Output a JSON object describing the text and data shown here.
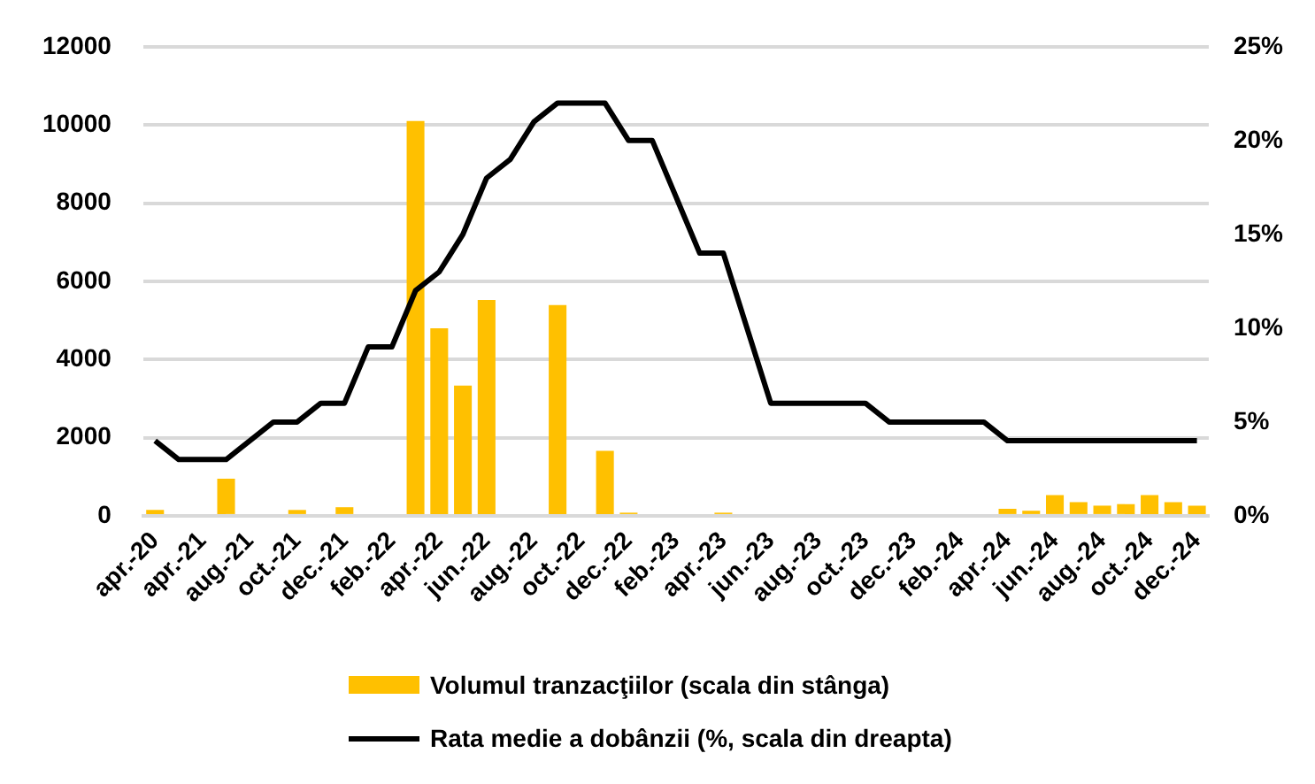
{
  "chart_data": {
    "type": "bar",
    "categories": [
      "apr.-20",
      null,
      "apr.-21",
      null,
      "aug.-21",
      null,
      "oct.-21",
      null,
      "dec.-21",
      null,
      "feb.-22",
      null,
      "apr.-22",
      null,
      "jun.-22",
      null,
      "aug.-22",
      null,
      "oct.-22",
      null,
      "dec.-22",
      null,
      "feb.-23",
      null,
      "apr.-23",
      null,
      "jun.-23",
      null,
      "aug.-23",
      null,
      "oct.-23",
      null,
      "dec.-23",
      null,
      "feb.-24",
      null,
      "apr.-24",
      null,
      "jun.-24",
      null,
      "aug.-24",
      null,
      "oct.-24",
      null,
      "dec.-24"
    ],
    "series": [
      {
        "name": "Volumul tranzacţiilor (scala din stânga)",
        "color": "#ffc000",
        "values": [
          150,
          0,
          0,
          950,
          0,
          0,
          150,
          0,
          220,
          0,
          0,
          10100,
          4800,
          3330,
          5520,
          0,
          0,
          5390,
          0,
          1660,
          80,
          0,
          0,
          0,
          80,
          0,
          0,
          0,
          0,
          0,
          0,
          0,
          0,
          0,
          0,
          0,
          180,
          130,
          530,
          350,
          260,
          300,
          530,
          350,
          260
        ]
      },
      {
        "name": "Rata medie a dobânzii (%, scala din dreapta)",
        "type": "line",
        "axis": "y2",
        "color": "#000000",
        "values": [
          4,
          3,
          3,
          3,
          4,
          5,
          5,
          6,
          6,
          9,
          9,
          12,
          13,
          15,
          18,
          19,
          21,
          22,
          22,
          22,
          20,
          20,
          17,
          14,
          14,
          10,
          6,
          6,
          6,
          6,
          6,
          5,
          5,
          5,
          5,
          5,
          4,
          4,
          4,
          4,
          4,
          4,
          4,
          4,
          4
        ]
      }
    ],
    "ylim": [
      0,
      12000
    ],
    "yticks": [
      0,
      2000,
      4000,
      6000,
      8000,
      10000,
      12000
    ],
    "y2lim": [
      0,
      25
    ],
    "y2ticks": [
      {
        "value": 0,
        "label": "0%"
      },
      {
        "value": 5,
        "label": "5%"
      },
      {
        "value": 10,
        "label": "10%"
      },
      {
        "value": 15,
        "label": "15%"
      },
      {
        "value": 20,
        "label": "20%"
      },
      {
        "value": 25,
        "label": "25%"
      }
    ],
    "grid": "y",
    "legend": "bottom",
    "marker": "none",
    "line_style": "solid"
  }
}
